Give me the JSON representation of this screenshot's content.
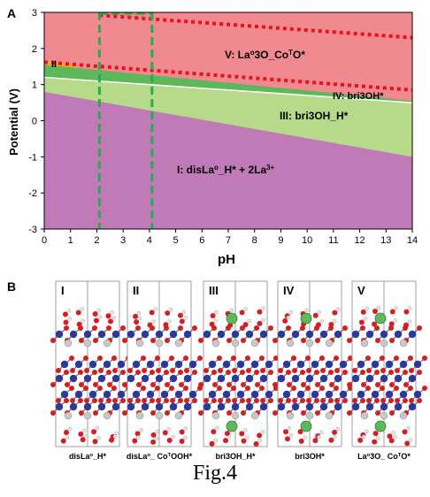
{
  "panel_a": {
    "letter": "A",
    "chart_data": {
      "type": "area",
      "title": "",
      "xlabel": "pH",
      "ylabel": "Potential (V)",
      "xlim": [
        0,
        14
      ],
      "ylim": [
        -3,
        3
      ],
      "x_ticks": [
        "0",
        "1",
        "2",
        "3",
        "4",
        "5",
        "6",
        "7",
        "8",
        "9",
        "10",
        "11",
        "12",
        "13",
        "14"
      ],
      "y_ticks": [
        "3",
        "2",
        "1",
        "0",
        "-1",
        "-2",
        "-3"
      ],
      "boundaries": [
        {
          "between": "I/III",
          "x": [
            0,
            14
          ],
          "y": [
            0.8,
            -1.0
          ]
        },
        {
          "between": "III/IV",
          "x": [
            0,
            14
          ],
          "y": [
            1.2,
            0.5
          ]
        },
        {
          "between": "IV/V",
          "x": [
            0,
            14
          ],
          "y": [
            1.55,
            0.55
          ]
        },
        {
          "between": "II/V",
          "x": [
            0,
            1.2
          ],
          "y": [
            1.65,
            1.55
          ]
        }
      ],
      "regions": [
        {
          "id": "I",
          "label_main": "I: disLa",
          "label_sup": "o",
          "label_tail": "_H* + 2La",
          "label_tail_sup": "3+",
          "color": "#c07ab8"
        },
        {
          "id": "II",
          "label": "II",
          "color": "#f2a91f"
        },
        {
          "id": "III",
          "label": "III: bri3OH_H*",
          "color": "#b7d98a"
        },
        {
          "id": "IV",
          "label": "IV: bri3OH*",
          "color": "#5cb85a"
        },
        {
          "id": "V",
          "label_parts": [
            "V: La",
            "o",
            "3O_Co",
            "T",
            "O*"
          ],
          "color": "#f08a90"
        }
      ],
      "highlight_window": {
        "x_range": [
          2.1,
          4.1
        ],
        "y_range": [
          -3,
          3
        ],
        "hatch_region": "V",
        "line_color": "#22b04b"
      },
      "red_dotted_lines": [
        {
          "x": [
            0,
            14
          ],
          "y": [
            1.62,
            0.85
          ]
        },
        {
          "x": [
            2.1,
            14
          ],
          "y": [
            2.92,
            2.3
          ]
        }
      ]
    }
  },
  "panel_b": {
    "letter": "B",
    "structures": [
      {
        "roman": "I",
        "caption_parts": [
          "disLa",
          "o",
          "_H*"
        ],
        "has_la": false
      },
      {
        "roman": "II",
        "caption_parts": [
          "disLa",
          "o",
          "_ Co",
          "T",
          "OOH*"
        ],
        "has_la": false
      },
      {
        "roman": "III",
        "caption_parts": [
          "bri3OH_H*"
        ],
        "has_la": true
      },
      {
        "roman": "IV",
        "caption_parts": [
          "bri3OH*"
        ],
        "has_la": true
      },
      {
        "roman": "V",
        "caption_parts": [
          "La",
          "o",
          "3O_ Co",
          "T",
          "O*"
        ],
        "has_la": true
      }
    ]
  },
  "figure_caption": "Fig.4",
  "colors": {
    "cobalt": "#2b3a9a",
    "oxygen": "#d21f26",
    "hydrogen": "#e6e6e6",
    "lanthanum": "#5fb85b",
    "dash_green": "#22b04b",
    "red_dots": "#e8141c"
  }
}
